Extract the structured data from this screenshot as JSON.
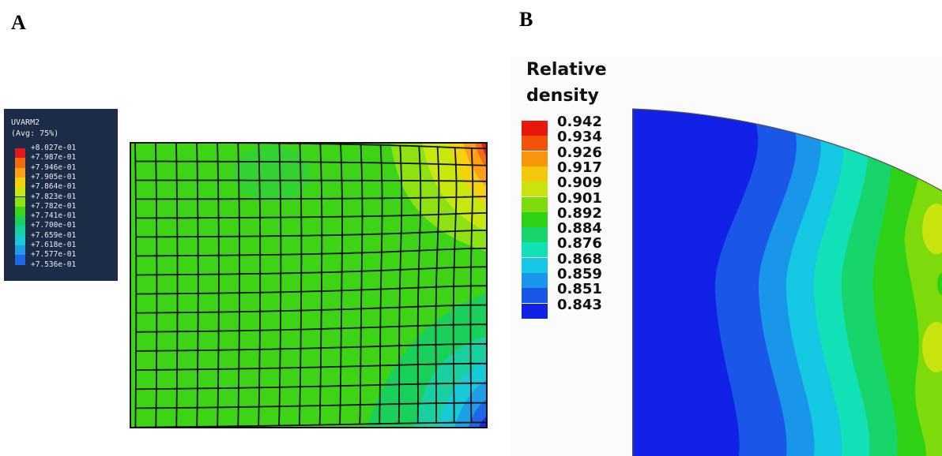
{
  "panels": {
    "a": {
      "letter": "A",
      "legend_title": "UVARM2",
      "legend_subtitle": "(Avg: 75%)",
      "legend_labels": [
        "+8.027e-01",
        "+7.987e-01",
        "+7.946e-01",
        "+7.905e-01",
        "+7.864e-01",
        "+7.823e-01",
        "+7.782e-01",
        "+7.741e-01",
        "+7.700e-01",
        "+7.659e-01",
        "+7.618e-01",
        "+7.577e-01",
        "+7.536e-01"
      ],
      "legend_colors": [
        "#e31a1c",
        "#f46a0f",
        "#fda015",
        "#f4d20c",
        "#c8e80e",
        "#8fe212",
        "#3dd416",
        "#19d15a",
        "#19d1a0",
        "#18c9d8",
        "#1c9fe6",
        "#1f66e8",
        "#1d2fe0"
      ]
    },
    "b": {
      "letter": "B",
      "legend_title_line1": "Relative",
      "legend_title_line2": "density",
      "legend_labels": [
        "0.942",
        "0.934",
        "0.926",
        "0.917",
        "0.909",
        "0.901",
        "0.892",
        "0.884",
        "0.876",
        "0.868",
        "0.859",
        "0.851",
        "0.843"
      ],
      "legend_colors": [
        "#e8170e",
        "#f2520a",
        "#f7960b",
        "#f1c80b",
        "#c9e40c",
        "#7ddb0c",
        "#2fd117",
        "#18d56b",
        "#12e0b6",
        "#14c8e4",
        "#1996ea",
        "#1a56e8",
        "#1121e5"
      ]
    }
  }
}
